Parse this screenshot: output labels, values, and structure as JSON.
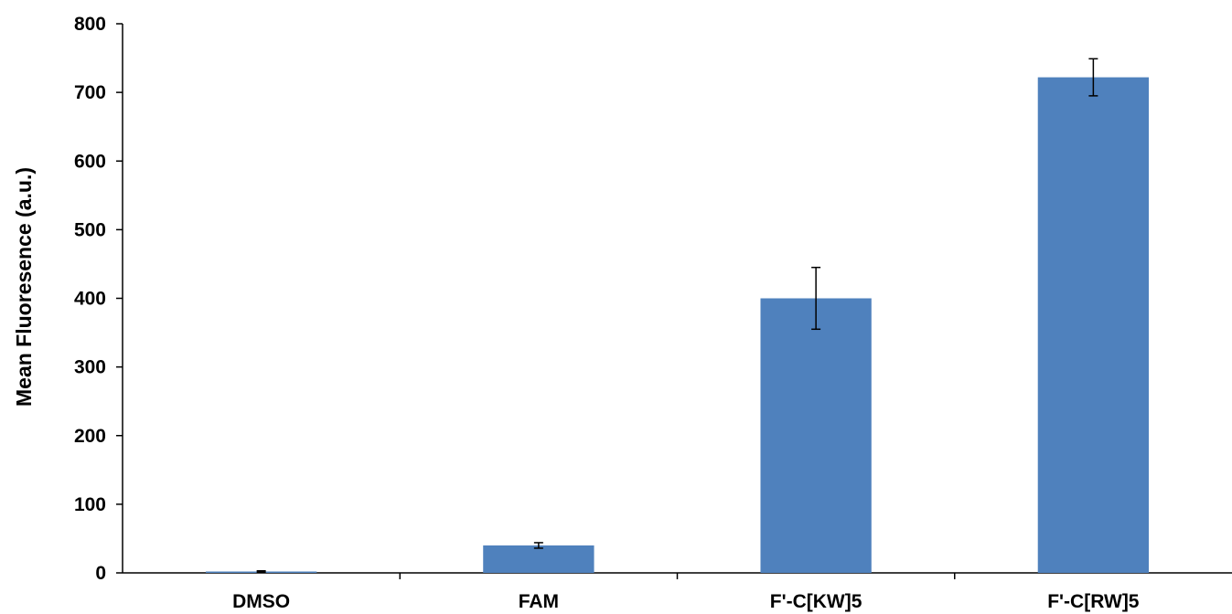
{
  "chart_data": {
    "type": "bar",
    "title": "",
    "xlabel": "",
    "ylabel": "Mean Fluoresence  (a.u.)",
    "categories": [
      "DMSO",
      "FAM",
      "F'-C[KW]5",
      "F'-C[RW]5"
    ],
    "values": [
      2,
      40,
      400,
      722
    ],
    "errors": [
      1,
      4,
      45,
      27
    ],
    "ylim": [
      0,
      800
    ],
    "yticks": [
      0,
      100,
      200,
      300,
      400,
      500,
      600,
      700,
      800
    ],
    "grid": false,
    "legend": "none",
    "colors": {
      "bar": "#4f81bd",
      "axis": "#000000",
      "error": "#000000"
    }
  }
}
